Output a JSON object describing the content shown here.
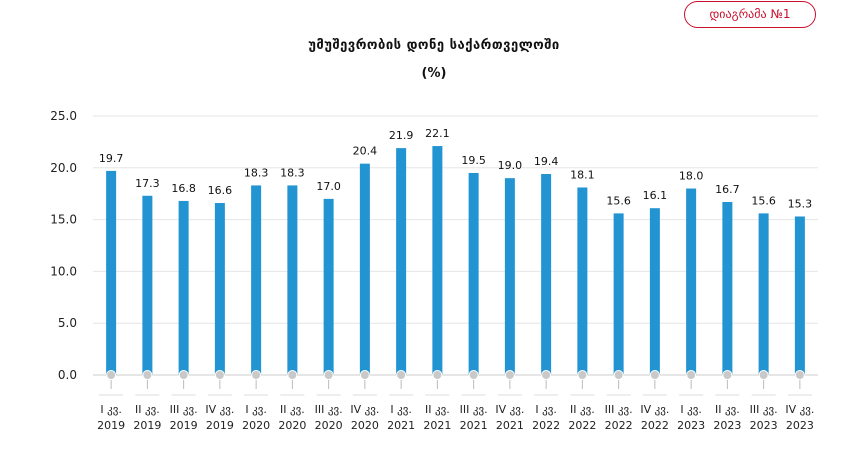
{
  "badge": {
    "label": "დიაგრამა №1"
  },
  "chart_data": {
    "type": "bar",
    "title": "უმუშევრობის დონე საქართველოში",
    "subtitle": "(%)",
    "categories": [
      [
        "I კვ.",
        "2019"
      ],
      [
        "II კვ.",
        "2019"
      ],
      [
        "III კვ.",
        "2019"
      ],
      [
        "IV კვ.",
        "2019"
      ],
      [
        "I კვ.",
        "2020"
      ],
      [
        "II კვ.",
        "2020"
      ],
      [
        "III კვ.",
        "2020"
      ],
      [
        "IV კვ.",
        "2020"
      ],
      [
        "I კვ.",
        "2021"
      ],
      [
        "II კვ.",
        "2021"
      ],
      [
        "III კვ.",
        "2021"
      ],
      [
        "IV კვ.",
        "2021"
      ],
      [
        "I კვ.",
        "2022"
      ],
      [
        "II კვ.",
        "2022"
      ],
      [
        "III კვ.",
        "2022"
      ],
      [
        "IV კვ.",
        "2022"
      ],
      [
        "I კვ.",
        "2023"
      ],
      [
        "II კვ.",
        "2023"
      ],
      [
        "III კვ.",
        "2023"
      ],
      [
        "IV კვ.",
        "2023"
      ]
    ],
    "values": [
      19.7,
      17.3,
      16.8,
      16.6,
      18.3,
      18.3,
      17.0,
      20.4,
      21.9,
      22.1,
      19.5,
      19.0,
      19.4,
      18.1,
      15.6,
      16.1,
      18.0,
      16.7,
      15.6,
      15.3
    ],
    "value_labels": [
      "19.7",
      "17.3",
      "16.8",
      "16.6",
      "18.3",
      "18.3",
      "17.0",
      "20.4",
      "21.9",
      "22.1",
      "19.5",
      "19.0",
      "19.4",
      "18.1",
      "15.6",
      "16.1",
      "18.0",
      "16.7",
      "15.6",
      "15.3"
    ],
    "yticks": [
      "0.0",
      "5.0",
      "10.0",
      "15.0",
      "20.0",
      "25.0"
    ],
    "ylim": [
      0,
      25
    ],
    "grid": true,
    "bar_color": "#2394d2",
    "xlabel": "",
    "ylabel": ""
  }
}
